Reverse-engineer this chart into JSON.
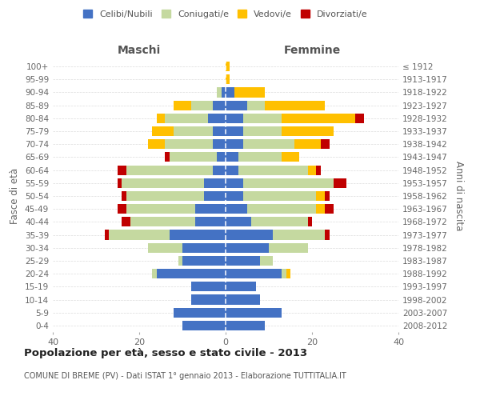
{
  "age_groups": [
    "0-4",
    "5-9",
    "10-14",
    "15-19",
    "20-24",
    "25-29",
    "30-34",
    "35-39",
    "40-44",
    "45-49",
    "50-54",
    "55-59",
    "60-64",
    "65-69",
    "70-74",
    "75-79",
    "80-84",
    "85-89",
    "90-94",
    "95-99",
    "100+"
  ],
  "birth_years": [
    "2008-2012",
    "2003-2007",
    "1998-2002",
    "1993-1997",
    "1988-1992",
    "1983-1987",
    "1978-1982",
    "1973-1977",
    "1968-1972",
    "1963-1967",
    "1958-1962",
    "1953-1957",
    "1948-1952",
    "1943-1947",
    "1938-1942",
    "1933-1937",
    "1928-1932",
    "1923-1927",
    "1918-1922",
    "1913-1917",
    "≤ 1912"
  ],
  "male_celibi": [
    10,
    12,
    8,
    8,
    16,
    10,
    10,
    13,
    7,
    7,
    5,
    5,
    3,
    2,
    3,
    3,
    4,
    3,
    1,
    0,
    0
  ],
  "male_coniugati": [
    0,
    0,
    0,
    0,
    1,
    1,
    8,
    14,
    15,
    16,
    18,
    19,
    20,
    11,
    11,
    9,
    10,
    5,
    1,
    0,
    0
  ],
  "male_vedovi": [
    0,
    0,
    0,
    0,
    0,
    0,
    0,
    0,
    0,
    0,
    0,
    0,
    0,
    0,
    4,
    5,
    2,
    4,
    0,
    0,
    0
  ],
  "male_divorziati": [
    0,
    0,
    0,
    0,
    0,
    0,
    0,
    1,
    2,
    2,
    1,
    1,
    2,
    1,
    0,
    0,
    0,
    0,
    0,
    0,
    0
  ],
  "female_celibi": [
    9,
    13,
    8,
    7,
    13,
    8,
    10,
    11,
    6,
    5,
    4,
    4,
    3,
    3,
    4,
    4,
    4,
    5,
    2,
    0,
    0
  ],
  "female_coniugati": [
    0,
    0,
    0,
    0,
    1,
    3,
    9,
    12,
    13,
    16,
    17,
    21,
    16,
    10,
    12,
    9,
    9,
    4,
    0,
    0,
    0
  ],
  "female_vedovi": [
    0,
    0,
    0,
    0,
    1,
    0,
    0,
    0,
    0,
    2,
    2,
    0,
    2,
    4,
    6,
    12,
    17,
    14,
    7,
    1,
    1
  ],
  "female_divorziati": [
    0,
    0,
    0,
    0,
    0,
    0,
    0,
    1,
    1,
    2,
    1,
    3,
    1,
    0,
    2,
    0,
    2,
    0,
    0,
    0,
    0
  ],
  "colors": {
    "celibi": "#4472c4",
    "coniugati": "#c5d9a0",
    "vedovi": "#ffc000",
    "divorziati": "#c00000"
  },
  "legend_labels": [
    "Celibi/Nubili",
    "Coniugati/e",
    "Vedovi/e",
    "Divorziati/e"
  ],
  "title": "Popolazione per età, sesso e stato civile - 2013",
  "subtitle": "COMUNE DI BREME (PV) - Dati ISTAT 1° gennaio 2013 - Elaborazione TUTTITALIA.IT",
  "xlabel_left": "Maschi",
  "xlabel_right": "Femmine",
  "ylabel_left": "Fasce di età",
  "ylabel_right": "Anni di nascita",
  "xlim": 40,
  "background_color": "#ffffff",
  "bar_height": 0.75
}
